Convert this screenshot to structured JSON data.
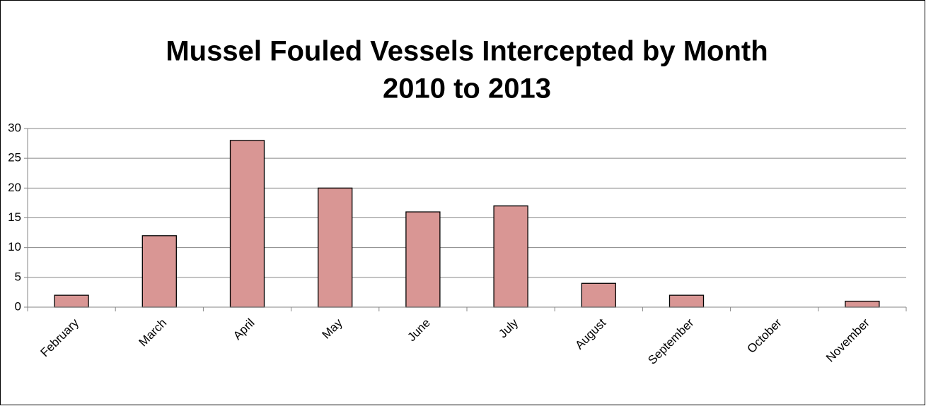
{
  "chart_data": {
    "type": "bar",
    "title": [
      "Mussel Fouled Vessels Intercepted by Month",
      "2010 to 2013"
    ],
    "categories": [
      "February",
      "March",
      "April",
      "May",
      "June",
      "July",
      "August",
      "September",
      "October",
      "November"
    ],
    "values": [
      2,
      12,
      28,
      20,
      16,
      17,
      4,
      2,
      0,
      1
    ],
    "color": "#d99694",
    "ylim": [
      0,
      30
    ],
    "yticks": [
      0,
      5,
      10,
      15,
      20,
      25,
      30
    ],
    "grid": true
  }
}
